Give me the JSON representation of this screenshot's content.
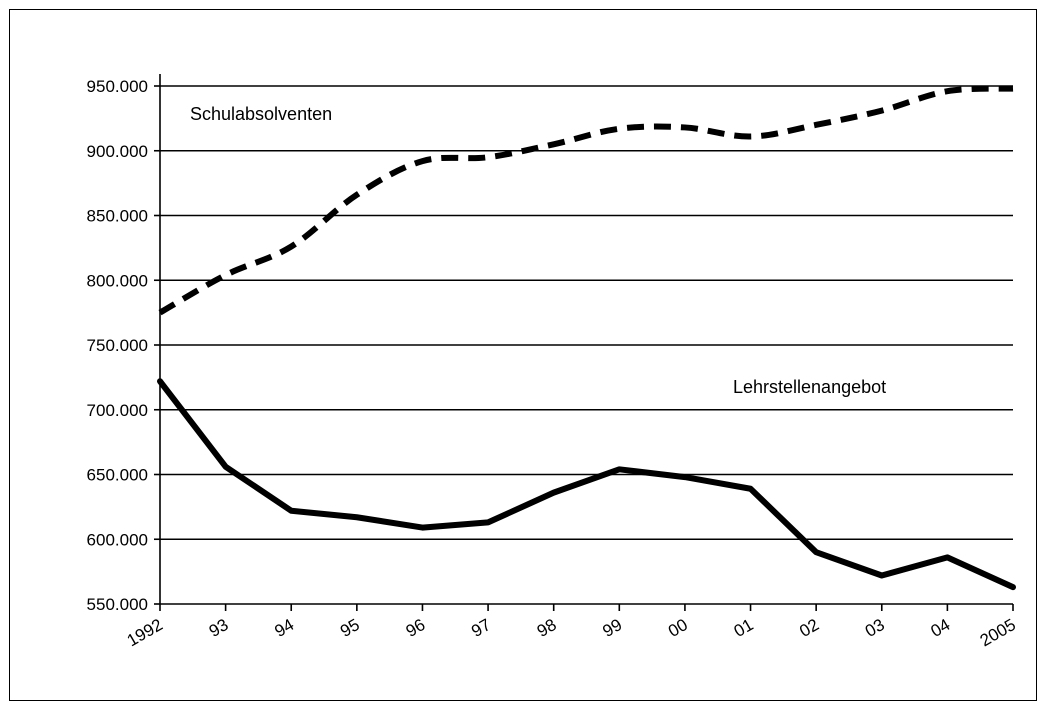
{
  "chart_data": {
    "type": "line",
    "categories": [
      "1992",
      "93",
      "94",
      "95",
      "96",
      "97",
      "98",
      "99",
      "00",
      "01",
      "02",
      "03",
      "04",
      "2005"
    ],
    "series": [
      {
        "name": "Schulabsolventen",
        "style": "dashed",
        "color": "#000000",
        "values": [
          775000,
          804000,
          826000,
          866000,
          892000,
          895000,
          905000,
          917000,
          918000,
          911000,
          920000,
          931000,
          946000,
          948000
        ]
      },
      {
        "name": "Lehrstellenangebot",
        "style": "solid",
        "color": "#000000",
        "values": [
          722000,
          656000,
          622000,
          617000,
          609000,
          613000,
          636000,
          654000,
          648000,
          639000,
          590000,
          572000,
          586000,
          563000
        ]
      }
    ],
    "ylim": [
      550000,
      950000
    ],
    "yticks": [
      "550.000",
      "600.000",
      "650.000",
      "700.000",
      "750.000",
      "800.000",
      "850.000",
      "900.000",
      "950.000"
    ],
    "ytick_values": [
      550000,
      600000,
      650000,
      700000,
      750000,
      800000,
      850000,
      900000,
      950000
    ],
    "grid": true,
    "legend": "inline labels",
    "title": "",
    "xlabel": "",
    "ylabel": ""
  }
}
